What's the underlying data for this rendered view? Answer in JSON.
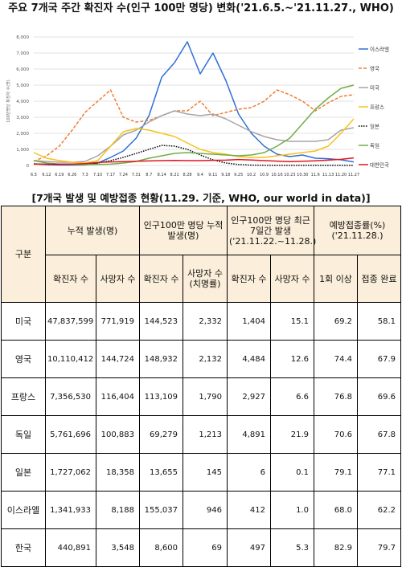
{
  "title": "주요 7개국 주간 확진자 수(인구 100만 명당) 변화('21.6.5.~'21.11.27., WHO)",
  "subtitle": "[7개국 발생 및 예방접종 현황(11.29. 기준, WHO, our world in data)]",
  "chart_data": {
    "type": "line",
    "ylabel": "100만명당 확진자 수(명)",
    "ylim": [
      0,
      8000
    ],
    "yticks": [
      "0",
      "1,000",
      "2,000",
      "3,000",
      "4,000",
      "5,000",
      "6,000",
      "7,000",
      "8,000"
    ],
    "x": [
      "6.5",
      "6.12",
      "6.19",
      "6.26",
      "7.3",
      "7.10",
      "7.17",
      "7.24",
      "7.31",
      "8.7",
      "8.14",
      "8.21",
      "8.28",
      "9.4",
      "9.11",
      "9.18",
      "9.25",
      "10.2",
      "10.9",
      "10.16",
      "10.23",
      "10.30",
      "11.6",
      "11.13",
      "11.20",
      "11.27"
    ],
    "grid": true,
    "legend_position": "right",
    "series": [
      {
        "name": "이스라엘",
        "color": "#2f6fd6",
        "dash": "solid",
        "values": [
          100,
          50,
          30,
          20,
          30,
          150,
          500,
          900,
          1700,
          3100,
          5500,
          6400,
          7700,
          5700,
          7000,
          5300,
          3200,
          2000,
          1200,
          700,
          550,
          650,
          450,
          420,
          350,
          220
        ]
      },
      {
        "name": "영국",
        "color": "#ee7d31",
        "dash": "dashed",
        "values": [
          250,
          600,
          1200,
          2200,
          3300,
          4000,
          4700,
          3000,
          2700,
          2800,
          3100,
          3400,
          3400,
          4000,
          3100,
          3300,
          3500,
          3600,
          4000,
          4700,
          4400,
          4000,
          3400,
          3900,
          4300,
          4400
        ]
      },
      {
        "name": "미국",
        "color": "#a5a5a5",
        "dash": "solid",
        "values": [
          300,
          250,
          200,
          200,
          250,
          600,
          1200,
          1900,
          2200,
          2700,
          3100,
          3400,
          3200,
          3100,
          3200,
          2900,
          2500,
          2100,
          1800,
          1600,
          1500,
          1500,
          1500,
          1600,
          2200,
          2350
        ]
      },
      {
        "name": "프랑스",
        "color": "#f5c21b",
        "dash": "solid",
        "values": [
          800,
          450,
          300,
          200,
          150,
          300,
          1200,
          2100,
          2300,
          2200,
          2000,
          1800,
          1400,
          1000,
          800,
          700,
          550,
          500,
          500,
          600,
          700,
          800,
          900,
          1200,
          2000,
          2900
        ]
      },
      {
        "name": "일본",
        "color": "#000000",
        "dash": "dotted",
        "values": [
          100,
          60,
          50,
          60,
          80,
          150,
          300,
          500,
          750,
          1000,
          1250,
          1200,
          1000,
          650,
          350,
          150,
          60,
          20,
          10,
          5,
          5,
          5,
          5,
          5,
          5,
          5
        ]
      },
      {
        "name": "독일",
        "color": "#70ad47",
        "dash": "solid",
        "values": [
          300,
          150,
          80,
          60,
          50,
          60,
          80,
          150,
          250,
          450,
          600,
          750,
          800,
          750,
          700,
          650,
          600,
          650,
          800,
          1200,
          1700,
          2600,
          3500,
          4200,
          4800,
          5000
        ]
      },
      {
        "name": "대한민국",
        "color": "#e3151b",
        "dash": "solid",
        "values": [
          80,
          80,
          80,
          90,
          110,
          190,
          220,
          240,
          260,
          280,
          300,
          310,
          300,
          300,
          320,
          330,
          370,
          340,
          300,
          270,
          240,
          260,
          290,
          330,
          380,
          470
        ]
      }
    ]
  },
  "table": {
    "header_group": "구분",
    "col_groups": [
      "누적 발생(명)",
      "인구100만 명당 누적발생(명)",
      "인구100만 명당 최근 7일간 발생 ('21.11.22.~11.28.)",
      "예방접종률(%) ('21.11.28.)"
    ],
    "sub_headers": [
      "확진자 수",
      "사망자 수",
      "확진자 수",
      "사망자 수 (치명률)",
      "확진자 수",
      "사망자 수",
      "1회 이상",
      "접종 완료"
    ],
    "rows": [
      {
        "country": "미국",
        "cells": [
          "47,837,599",
          "771,919",
          "144,523",
          "2,332",
          "1,404",
          "15.1",
          "69.2",
          "58.1"
        ]
      },
      {
        "country": "영국",
        "cells": [
          "10,110,412",
          "144,724",
          "148,932",
          "2,132",
          "4,484",
          "12.6",
          "74.4",
          "67.9"
        ]
      },
      {
        "country": "프랑스",
        "cells": [
          "7,356,530",
          "116,404",
          "113,109",
          "1,790",
          "2,927",
          "6.6",
          "76.8",
          "69.6"
        ]
      },
      {
        "country": "독일",
        "cells": [
          "5,761,696",
          "100,883",
          "69,279",
          "1,213",
          "4,891",
          "21.9",
          "70.6",
          "67.8"
        ]
      },
      {
        "country": "일본",
        "cells": [
          "1,727,062",
          "18,358",
          "13,655",
          "145",
          "6",
          "0.1",
          "79.1",
          "77.1"
        ]
      },
      {
        "country": "이스라엘",
        "cells": [
          "1,341,933",
          "8,188",
          "155,037",
          "946",
          "412",
          "1.0",
          "68.0",
          "62.2"
        ]
      },
      {
        "country": "한국",
        "cells": [
          "440,891",
          "3,548",
          "8,600",
          "69",
          "497",
          "5.3",
          "82.9",
          "79.7"
        ]
      }
    ]
  }
}
